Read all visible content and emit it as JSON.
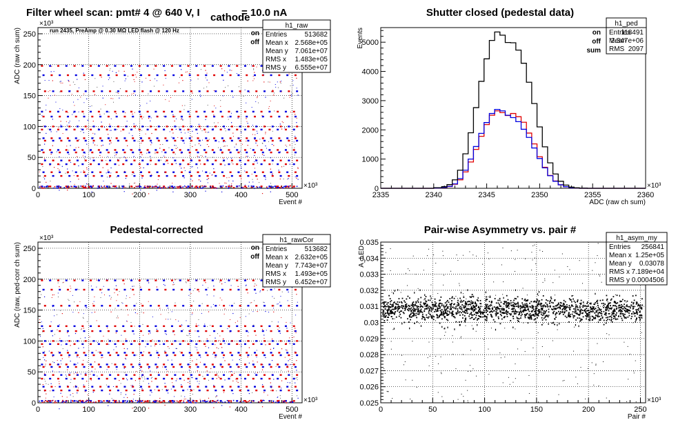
{
  "chart_data": [
    {
      "type": "scatter",
      "title": "Filter wheel scan: pmt#   4 @   640 V, I",
      "title_sub": "cathode",
      "title_tail": " = 10.0 nA",
      "annotation": "run 2435, PreAmp @ 0.30 MΩ   LED flash @  120 Hz",
      "xlabel": "Event #",
      "ylabel": "ADC (raw ch sum)",
      "x_exponent": "×10³",
      "y_exponent": "×10³",
      "xlim": [
        0,
        520
      ],
      "ylim": [
        0,
        260
      ],
      "xticks": [
        0,
        100,
        200,
        300,
        400,
        500
      ],
      "yticks": [
        0,
        50,
        100,
        150,
        200,
        250
      ],
      "grid": true,
      "legend": [
        {
          "label": "on",
          "color": "#e00000"
        },
        {
          "label": "off",
          "color": "#0000e0"
        }
      ],
      "stats_box": {
        "name": "h1_raw",
        "rows": [
          [
            "Entries",
            "513682"
          ],
          [
            "Mean x",
            "2.568e+05"
          ],
          [
            "Mean y",
            "7.061e+07"
          ],
          [
            "RMS x",
            "1.483e+05"
          ],
          [
            "RMS y",
            "6.555e+07"
          ]
        ]
      },
      "levels": [
        198,
        183,
        157,
        124,
        116,
        100,
        95,
        81,
        77,
        62,
        58,
        45,
        39,
        26,
        20,
        3
      ],
      "period": 16,
      "x_start": 8
    },
    {
      "type": "line",
      "title": "Shutter closed (pedestal data)",
      "xlabel": "ADC (raw ch sum)",
      "ylabel": "Events",
      "x_exponent": "×10³",
      "xlim": [
        2335,
        2360
      ],
      "ylim": [
        0,
        5500
      ],
      "xticks": [
        2335,
        2340,
        2345,
        2350,
        2355,
        2360
      ],
      "yticks": [
        0,
        1000,
        2000,
        3000,
        4000,
        5000
      ],
      "grid": false,
      "legend": [
        {
          "label": "on",
          "color": "#e00000"
        },
        {
          "label": "off",
          "color": "#0000e0"
        },
        {
          "label": "sum",
          "color": "#000000"
        }
      ],
      "stats_box": {
        "name": "h1_ped",
        "rows": [
          [
            "Entries",
            "118491"
          ],
          [
            "Mean",
            "2.347e+06"
          ],
          [
            "RMS",
            "2097"
          ]
        ]
      },
      "x": [
        2335.5,
        2336.5,
        2337.5,
        2338.5,
        2339.5,
        2340.5,
        2341.0,
        2341.5,
        2342.0,
        2342.5,
        2343.0,
        2343.5,
        2344.0,
        2344.5,
        2345.0,
        2345.5,
        2346.0,
        2346.5,
        2347.0,
        2347.5,
        2348.0,
        2348.5,
        2349.0,
        2349.5,
        2350.0,
        2350.5,
        2351.0,
        2351.5,
        2352.0,
        2352.5,
        2353.0,
        2353.5,
        2354.0,
        2355.0,
        2356.0,
        2357.0,
        2358.0,
        2359.0
      ],
      "series": [
        {
          "name": "on",
          "color": "#e00000",
          "values": [
            0,
            0,
            0,
            0,
            0,
            10,
            25,
            60,
            140,
            290,
            560,
            900,
            1330,
            1780,
            2180,
            2500,
            2650,
            2590,
            2490,
            2560,
            2450,
            2260,
            1890,
            1520,
            1080,
            720,
            440,
            250,
            120,
            55,
            20,
            8,
            2,
            0,
            0,
            0,
            0,
            0
          ]
        },
        {
          "name": "off",
          "color": "#0000e0",
          "values": [
            0,
            0,
            0,
            0,
            0,
            10,
            30,
            65,
            150,
            330,
            620,
            1000,
            1430,
            1880,
            2250,
            2560,
            2700,
            2650,
            2500,
            2420,
            2280,
            2020,
            1740,
            1380,
            1020,
            700,
            430,
            240,
            120,
            55,
            20,
            8,
            2,
            0,
            0,
            0,
            0,
            0
          ]
        },
        {
          "name": "sum",
          "color": "#000000",
          "values": [
            0,
            0,
            0,
            0,
            0,
            20,
            55,
            125,
            290,
            620,
            1180,
            1900,
            2760,
            3660,
            4430,
            5060,
            5350,
            5240,
            4990,
            4980,
            4730,
            4280,
            3630,
            2900,
            2100,
            1420,
            870,
            490,
            240,
            110,
            40,
            16,
            4,
            0,
            0,
            0,
            0,
            0
          ]
        }
      ]
    },
    {
      "type": "scatter",
      "title": "Pedestal-corrected",
      "xlabel": "Event #",
      "ylabel": "ADC (raw, ped-corr ch sum)",
      "x_exponent": "×10³",
      "y_exponent": "×10³",
      "xlim": [
        0,
        520
      ],
      "ylim": [
        0,
        260
      ],
      "xticks": [
        0,
        100,
        200,
        300,
        400,
        500
      ],
      "yticks": [
        0,
        50,
        100,
        150,
        200,
        250
      ],
      "grid": true,
      "legend": [
        {
          "label": "on",
          "color": "#e00000"
        },
        {
          "label": "off",
          "color": "#0000e0"
        }
      ],
      "stats_box": {
        "name": "h1_rawCor",
        "rows": [
          [
            "Entries",
            "513682"
          ],
          [
            "Mean x",
            "2.632e+05"
          ],
          [
            "Mean y",
            "7.743e+07"
          ],
          [
            "RMS x",
            "1.493e+05"
          ],
          [
            "RMS y",
            "6.452e+07"
          ]
        ]
      },
      "levels": [
        198,
        183,
        157,
        124,
        116,
        100,
        95,
        81,
        77,
        62,
        58,
        45,
        39,
        26,
        20,
        3
      ],
      "period": 16,
      "x_start": 8
    },
    {
      "type": "scatter",
      "title": "Pair-wise Asymmetry vs. pair #",
      "xlabel": "Pair #",
      "ylabel": "A_LED",
      "x_exponent": "×10³",
      "xlim": [
        0,
        255
      ],
      "ylim": [
        0.025,
        0.035
      ],
      "xticks": [
        0,
        50,
        100,
        150,
        200,
        250
      ],
      "yticks": [
        0.025,
        0.026,
        0.027,
        0.028,
        0.029,
        0.03,
        0.031,
        0.032,
        0.033,
        0.034,
        0.035
      ],
      "ytick_labels": [
        "0.025",
        "0.026",
        "0.027",
        "0.028",
        "0.029",
        "0.03",
        "0.031",
        "0.032",
        "0.033",
        "0.034",
        "0.035"
      ],
      "grid": true,
      "stats_box": {
        "name": "h1_asym_my",
        "rows": [
          [
            "Entries",
            "256841"
          ],
          [
            "Mean x",
            "1.25e+05"
          ],
          [
            "Mean y",
            "0.03078"
          ],
          [
            "RMS x",
            "7.189e+04"
          ],
          [
            "RMS y",
            "0.0004506"
          ]
        ]
      },
      "band_center": 0.0308,
      "band_halfwidth": 0.0006
    }
  ]
}
